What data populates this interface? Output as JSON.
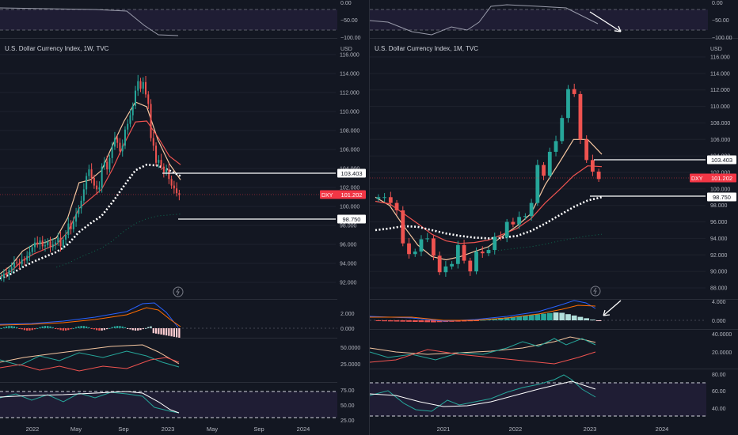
{
  "colors": {
    "background": "#131722",
    "grid": "#1e222d",
    "axis_text": "#b2b5be",
    "bull": "#26a69a",
    "bear": "#ef5350",
    "ema_fast": "#f5c6a0",
    "ema_slow": "#ef5350",
    "ema_white": "#ffffff",
    "ema_long": "#0f6b50",
    "rsi_line": "#7e57c2",
    "rsi_band": "#2a2244",
    "price_badge": "#f23645",
    "macd_line": "#2962ff",
    "signal_line": "#ff6d00"
  },
  "left_panel": {
    "title": "U.S. Dollar Currency Index, 1W, TVC",
    "currency": "USD",
    "price_ticks": [
      "116.000",
      "114.000",
      "112.000",
      "110.000",
      "108.000",
      "106.000",
      "104.000",
      "102.000",
      "100.000",
      "98.000",
      "96.000",
      "94.000",
      "92.000"
    ],
    "level_1": "103.403",
    "level_2": "98.750",
    "last_symbol": "DXY",
    "last_price": "101.202",
    "top_rsi_ticks": [
      "0.00",
      "−50.00",
      "−100.00"
    ],
    "macd_ticks": [
      "2.000",
      "0.000"
    ],
    "dmi_ticks": [
      "50.0000",
      "25.0000"
    ],
    "rsi_ticks": [
      "75.00",
      "50.00",
      "25.00"
    ],
    "time_ticks": [
      "2022",
      "May",
      "Sep",
      "2023",
      "May",
      "Sep",
      "2024"
    ]
  },
  "right_panel": {
    "title": "U.S. Dollar Currency Index, 1M, TVC",
    "currency": "USD",
    "price_ticks": [
      "116.000",
      "114.000",
      "112.000",
      "110.000",
      "108.000",
      "106.000",
      "104.000",
      "102.000",
      "100.000",
      "98.000",
      "96.000",
      "94.000",
      "92.000",
      "90.000",
      "88.000"
    ],
    "level_1": "103.403",
    "level_2": "98.750",
    "last_symbol": "DXY",
    "last_price": "101.202",
    "top_rsi_ticks": [
      "0.00",
      "−50.00",
      "−100.00"
    ],
    "macd_ticks": [
      "4.000",
      "0.000"
    ],
    "dmi_ticks": [
      "40.0000",
      "20.0000"
    ],
    "rsi_ticks": [
      "80.00",
      "60.00",
      "40.00"
    ],
    "time_ticks": [
      "2021",
      "2022",
      "2023",
      "2024"
    ]
  },
  "chart_data": [
    {
      "type": "candlestick",
      "title": "U.S. Dollar Currency Index, 1W, TVC",
      "ylabel": "USD",
      "ylim": [
        91,
        116.5
      ],
      "x_start": "2021-09",
      "series": [
        {
          "name": "candles (open, close) by week",
          "values": [
            [
              92.5,
              92.6
            ],
            [
              92.6,
              92.9
            ],
            [
              92.9,
              92.8
            ],
            [
              92.8,
              93.3
            ],
            [
              93.3,
              93.6
            ],
            [
              93.6,
              94.1
            ],
            [
              94.1,
              94.0
            ],
            [
              94.0,
              93.9
            ],
            [
              93.9,
              94.4
            ],
            [
              94.4,
              94.3
            ],
            [
              94.3,
              94.8
            ],
            [
              94.8,
              95.2
            ],
            [
              95.2,
              95.7
            ],
            [
              95.7,
              96.2
            ],
            [
              96.2,
              96.0
            ],
            [
              96.0,
              96.4
            ],
            [
              96.4,
              95.8
            ],
            [
              95.8,
              95.9
            ],
            [
              95.9,
              96.3
            ],
            [
              96.3,
              95.7
            ],
            [
              95.7,
              96.0
            ],
            [
              96.0,
              96.2
            ],
            [
              96.2,
              96.7
            ],
            [
              96.7,
              95.8
            ],
            [
              95.8,
              96.5
            ],
            [
              96.5,
              97.0
            ],
            [
              97.0,
              98.2
            ],
            [
              98.2,
              97.6
            ],
            [
              97.6,
              98.4
            ],
            [
              98.4,
              99.2
            ],
            [
              99.2,
              99.8
            ],
            [
              99.8,
              100.6
            ],
            [
              100.6,
              101.8
            ],
            [
              101.8,
              103.2
            ],
            [
              103.2,
              103.9
            ],
            [
              103.9,
              103.0
            ],
            [
              103.0,
              102.2
            ],
            [
              102.2,
              101.8
            ],
            [
              101.8,
              102.0
            ],
            [
              102.0,
              104.2
            ],
            [
              104.2,
              104.7
            ],
            [
              104.7,
              103.9
            ],
            [
              103.9,
              105.1
            ],
            [
              105.1,
              106.3
            ],
            [
              106.3,
              107.2
            ],
            [
              107.2,
              106.7
            ],
            [
              106.7,
              105.8
            ],
            [
              105.8,
              106.4
            ],
            [
              106.4,
              108.1
            ],
            [
              108.1,
              108.7
            ],
            [
              108.7,
              109.6
            ],
            [
              109.6,
              110.6
            ],
            [
              110.6,
              112.2
            ],
            [
              112.2,
              113.2
            ],
            [
              113.2,
              112.4
            ],
            [
              112.4,
              113.1
            ],
            [
              113.1,
              111.8
            ],
            [
              111.8,
              110.8
            ],
            [
              110.8,
              107.2
            ],
            [
              107.2,
              106.4
            ],
            [
              106.4,
              104.6
            ],
            [
              104.6,
              104.9
            ],
            [
              104.9,
              104.2
            ],
            [
              104.2,
              103.6
            ],
            [
              103.6,
              103.9
            ],
            [
              103.9,
              102.9
            ],
            [
              102.9,
              102.2
            ],
            [
              102.2,
              101.9
            ],
            [
              101.9,
              101.4
            ],
            [
              101.4,
              101.2
            ]
          ]
        },
        {
          "name": "ema-fast",
          "values": [
            92.9,
            93.8,
            95.3,
            96.0,
            96.2,
            96.7,
            98.8,
            102.5,
            102.8,
            103.8,
            106.5,
            109.0,
            111.0,
            110.5,
            107.0,
            104.5,
            102.8
          ]
        },
        {
          "name": "ema-slow",
          "values": [
            92.6,
            93.2,
            94.3,
            95.0,
            95.5,
            96.0,
            97.3,
            99.8,
            100.8,
            101.8,
            104.0,
            106.6,
            108.9,
            109.0,
            107.3,
            105.3,
            104.4
          ]
        },
        {
          "name": "ema-white",
          "values": [
            92.4,
            92.9,
            93.6,
            94.2,
            94.7,
            95.2,
            96.0,
            97.3,
            98.2,
            99.0,
            100.5,
            102.2,
            103.8,
            104.4,
            104.3,
            103.8,
            103.2
          ]
        },
        {
          "name": "ema-long",
          "values": [
            null,
            null,
            null,
            null,
            null,
            93.6,
            94.0,
            94.6,
            95.1,
            95.6,
            96.4,
            97.4,
            98.2,
            98.7,
            99.0,
            99.1,
            99.2
          ]
        }
      ]
    },
    {
      "type": "candlestick",
      "title": "U.S. Dollar Currency Index, 1M, TVC",
      "ylabel": "USD",
      "ylim": [
        87.5,
        116.5
      ],
      "x_start": "2020-03",
      "series": [
        {
          "name": "candles (open, close) by month",
          "values": [
            [
              98.8,
              99.0
            ],
            [
              99.0,
              99.0
            ],
            [
              99.0,
              98.3
            ],
            [
              98.3,
              97.4
            ],
            [
              97.4,
              93.4
            ],
            [
              93.4,
              92.1
            ],
            [
              92.1,
              92.4
            ],
            [
              92.4,
              93.9
            ],
            [
              93.9,
              94.0
            ],
            [
              94.0,
              91.9
            ],
            [
              91.9,
              89.9
            ],
            [
              89.9,
              90.6
            ],
            [
              90.6,
              90.9
            ],
            [
              90.9,
              93.2
            ],
            [
              93.2,
              91.3
            ],
            [
              91.3,
              90.0
            ],
            [
              90.0,
              92.4
            ],
            [
              92.4,
              92.2
            ],
            [
              92.2,
              92.6
            ],
            [
              92.6,
              94.2
            ],
            [
              94.2,
              94.1
            ],
            [
              94.1,
              96.0
            ],
            [
              96.0,
              95.7
            ],
            [
              95.7,
              96.6
            ],
            [
              96.6,
              96.7
            ],
            [
              96.7,
              98.3
            ],
            [
              98.3,
              102.9
            ],
            [
              102.9,
              101.6
            ],
            [
              101.6,
              104.5
            ],
            [
              104.5,
              105.8
            ],
            [
              105.8,
              108.6
            ],
            [
              108.6,
              112.1
            ],
            [
              112.1,
              111.5
            ],
            [
              111.5,
              106.0
            ],
            [
              106.0,
              103.5
            ],
            [
              103.5,
              102.1
            ],
            [
              102.1,
              101.2
            ]
          ]
        },
        {
          "name": "ema-fast",
          "values": [
            99.0,
            98.0,
            95.5,
            93.2,
            91.8,
            91.4,
            91.8,
            92.4,
            93.0,
            94.3,
            95.5,
            97.0,
            100.5,
            103.2,
            106.0,
            106.0,
            104.2
          ]
        },
        {
          "name": "ema-slow",
          "values": [
            98.5,
            98.2,
            97.0,
            95.8,
            94.5,
            93.7,
            93.4,
            93.5,
            93.8,
            94.5,
            95.2,
            96.4,
            98.3,
            99.9,
            101.6,
            102.8,
            102.7
          ]
        },
        {
          "name": "ema-white",
          "values": [
            95.0,
            95.2,
            95.5,
            95.4,
            95.0,
            94.6,
            94.3,
            94.1,
            94.0,
            94.1,
            94.3,
            94.9,
            95.8,
            96.8,
            97.8,
            98.6,
            99.0
          ]
        },
        {
          "name": "ema-long",
          "values": [
            null,
            null,
            null,
            null,
            null,
            null,
            null,
            null,
            92.4,
            92.6,
            92.8,
            93.0,
            93.3,
            93.7,
            94.0,
            94.3,
            94.5
          ]
        }
      ]
    }
  ]
}
